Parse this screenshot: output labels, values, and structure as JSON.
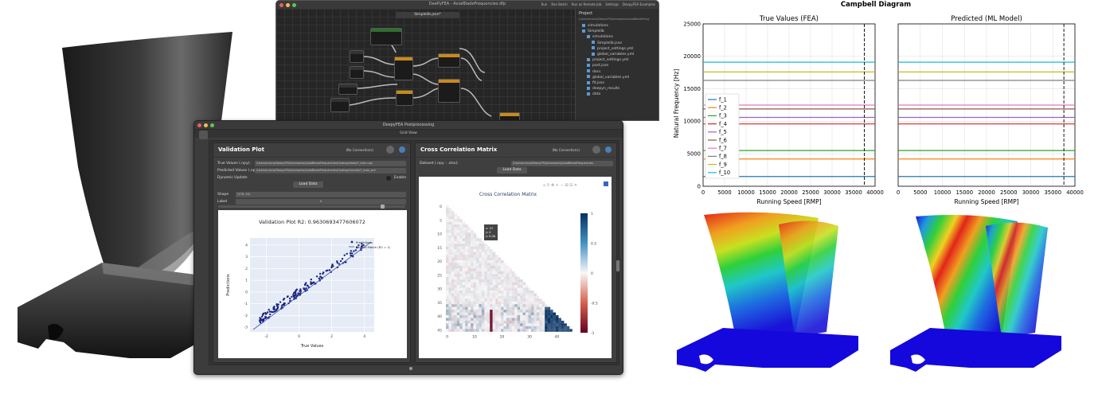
{
  "node_editor": {
    "window_title": "DeePyFEA - AxialBladeFrequencies.dfp",
    "menu": [
      "Run",
      "Run Batch",
      "Run as Remote Job",
      "Settings",
      "DeepyFEA Examples"
    ],
    "tab_title": "Simplelib.json*",
    "project": {
      "header": "Project",
      "path": "/Users/marco/DeepyFEA/examples/AxialBladeFreq/",
      "items": [
        "simulations",
        "Simplelib",
        "simulations",
        "Simplelib.json",
        "project_settings.yml",
        "global_variables.yml",
        "project_settings.yml",
        "post.json",
        "docs",
        "global_variables.yml",
        "fit.json",
        "deepyn_results",
        "data"
      ]
    },
    "node_labels": [
      "Input",
      "Model",
      "Input",
      "Input",
      "Model",
      "Input",
      "Model",
      "Sort Data",
      "Validation",
      "Save/Load"
    ]
  },
  "postproc": {
    "window_title": "DeepyFEA Postprocessing",
    "grid_label": "Grid View",
    "validation_panel": {
      "title": "Validation Plot",
      "connections": "(No Connections)",
      "true_values_label": "True Values (.npy):",
      "true_values_path": "/Users/marco/DeepyFEA/examples/AxialBladeFrequencies/Hydrogr/data/Y_train.npy",
      "predicted_values_label": "Predicted Values (.npy):",
      "predicted_values_path": "/Users/marco/DeepyFEA/examples/AxialBladeFrequencies/Hydrogr/results/Y_train_pre",
      "dynamic_update_label": "Dynamic Update",
      "enable_label": "Enable",
      "load_button": "Load Data",
      "shape_label": "Shape",
      "shape_value": "(178, 10)",
      "label_label": "Label",
      "label_value": "0",
      "plot": {
        "title": "Validation Plot R2: 0.9630693477606072",
        "xlabel": "True Values",
        "ylabel": "Predictions",
        "legend": [
          "Predictions",
          "Perfect Match (R2 = 1)"
        ],
        "xticks": [
          "-2",
          "0",
          "2",
          "4"
        ],
        "yticks": [
          "-3",
          "-2",
          "-1",
          "0",
          "1",
          "2",
          "3",
          "4"
        ]
      }
    },
    "corr_panel": {
      "title": "Cross Correlation Matrix",
      "connections": "(No Connections)",
      "dataset_label": "Dataset (.npy - .xlsx):",
      "dataset_path": "/Users/marco/DeepyFEA/examples/AxialBladeFrequencies",
      "load_button": "Load Data",
      "plot": {
        "title": "Cross Correlation Matrix",
        "yticks": [
          "0",
          "5",
          "10",
          "15",
          "20",
          "25",
          "30",
          "35",
          "40",
          "45"
        ],
        "xticks": [
          "0",
          "10",
          "20",
          "30",
          "40"
        ],
        "cbar_ticks": [
          "1",
          "0.5",
          "0",
          "-0.5",
          "-1"
        ],
        "tooltip": [
          "x: 13",
          "y: 4",
          "z: 0.06"
        ]
      }
    }
  },
  "chart_data": [
    {
      "type": "line",
      "suptitle": "Campbell Diagram",
      "title": "True Values (FEA)",
      "xlabel": "Running Speed [RMP]",
      "ylabel": "Natural Frequency [Hz]",
      "xlim": [
        0,
        40000
      ],
      "ylim": [
        0,
        25000
      ],
      "xticks": [
        0,
        5000,
        10000,
        15000,
        20000,
        25000,
        30000,
        35000,
        40000
      ],
      "yticks": [
        0,
        5000,
        10000,
        15000,
        20000,
        25000
      ],
      "vline_x": 37500,
      "legend_position": "center-left",
      "series": [
        {
          "name": "f_1",
          "color": "#1f77b4",
          "value": 1500
        },
        {
          "name": "f_2",
          "color": "#ff7f0e",
          "value": 4200
        },
        {
          "name": "f_3",
          "color": "#2ca02c",
          "value": 5500
        },
        {
          "name": "f_4",
          "color": "#d62728",
          "value": 9600
        },
        {
          "name": "f_5",
          "color": "#9467bd",
          "value": 10600
        },
        {
          "name": "f_6",
          "color": "#8c564b",
          "value": 11900
        },
        {
          "name": "f_7",
          "color": "#e377c2",
          "value": 12500
        },
        {
          "name": "f_8",
          "color": "#7f7f7f",
          "value": 16300
        },
        {
          "name": "f_9",
          "color": "#bcbd22",
          "value": 17600
        },
        {
          "name": "f_10",
          "color": "#17becf",
          "value": 19100
        }
      ]
    },
    {
      "type": "line",
      "title": "Predicted (ML Model)",
      "xlabel": "Running Speed [RMP]",
      "xlim": [
        0,
        40000
      ],
      "ylim": [
        0,
        25000
      ],
      "xticks": [
        0,
        5000,
        10000,
        15000,
        20000,
        25000,
        30000,
        35000,
        40000
      ],
      "vline_x": 37500,
      "series": [
        {
          "color": "#1f77b4",
          "value": 1500
        },
        {
          "color": "#ff7f0e",
          "value": 4200
        },
        {
          "color": "#2ca02c",
          "value": 5500
        },
        {
          "color": "#d62728",
          "value": 9600
        },
        {
          "color": "#9467bd",
          "value": 10600
        },
        {
          "color": "#8c564b",
          "value": 11900
        },
        {
          "color": "#e377c2",
          "value": 12500
        },
        {
          "color": "#7f7f7f",
          "value": 16300
        },
        {
          "color": "#bcbd22",
          "value": 17600
        },
        {
          "color": "#17becf",
          "value": 19100
        }
      ]
    }
  ]
}
